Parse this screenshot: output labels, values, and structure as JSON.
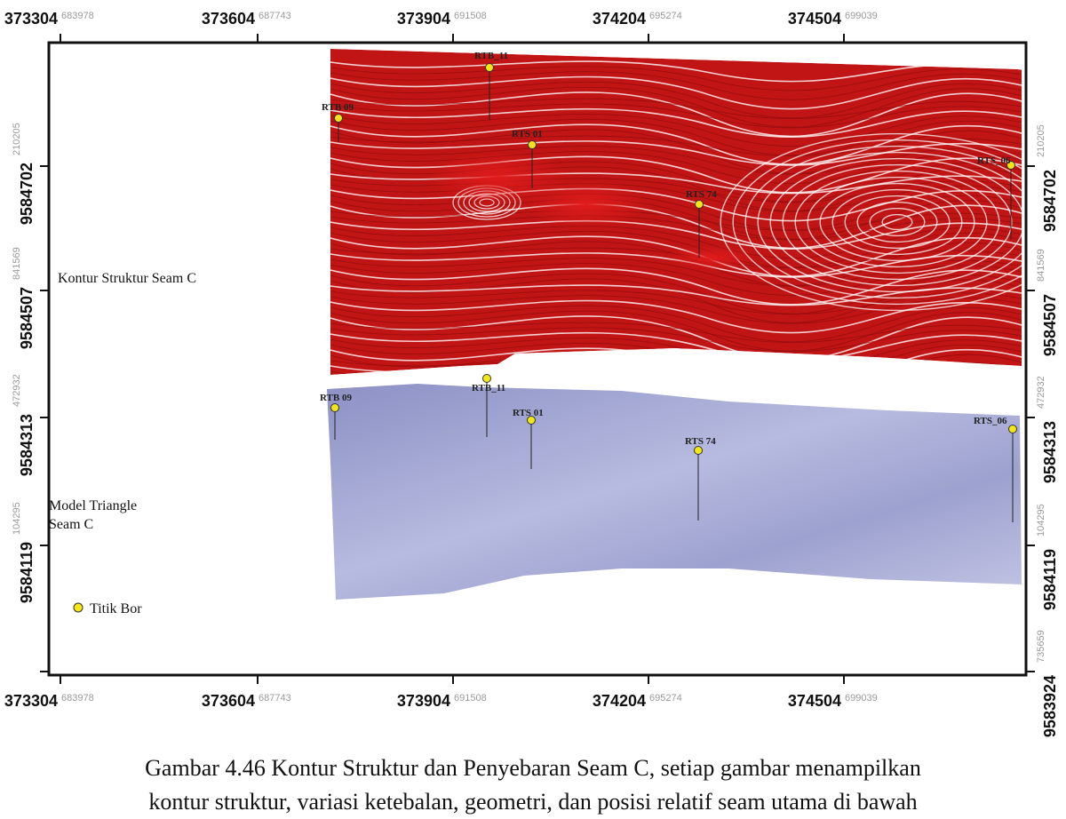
{
  "x_ticks": [
    {
      "value": "373304",
      "sub": "683978"
    },
    {
      "value": "373604",
      "sub": "687743"
    },
    {
      "value": "373904",
      "sub": "691508"
    },
    {
      "value": "374204",
      "sub": "695274"
    },
    {
      "value": "374504",
      "sub": "699039"
    }
  ],
  "y_ticks_left": [
    {
      "value": "9584702",
      "sub": "210205"
    },
    {
      "value": "9584507",
      "sub": "841569"
    },
    {
      "value": "9584313",
      "sub": "472932"
    },
    {
      "value": "9584119",
      "sub": "104295"
    }
  ],
  "y_ticks_right": [
    {
      "value": "9584702",
      "sub": "210205"
    },
    {
      "value": "9584507",
      "sub": "841569"
    },
    {
      "value": "9584313",
      "sub": "472932"
    },
    {
      "value": "9584119",
      "sub": "104295"
    },
    {
      "value": "9583924",
      "sub": "735659"
    }
  ],
  "legend": {
    "contour_label": "Kontur Struktur Seam C",
    "triangle_label_line1": "Model Triangle",
    "triangle_label_line2": "Seam C",
    "borehole_label": "Titik Bor"
  },
  "wells_top": [
    {
      "name": "RTB_11"
    },
    {
      "name": "RTB 09"
    },
    {
      "name": "RTS 01"
    },
    {
      "name": "RTS 74"
    },
    {
      "name": "RTS_06"
    }
  ],
  "wells_bottom": [
    {
      "name": "RTB_11"
    },
    {
      "name": "RTB 09"
    },
    {
      "name": "RTS 01"
    },
    {
      "name": "RTS 74"
    },
    {
      "name": "RTS_06"
    }
  ],
  "colors": {
    "contour_red": "#d51a1a",
    "contour_dark": "#9e0f0f",
    "triangle_fill": "#a9aed6",
    "well_marker": "#f5e616"
  },
  "caption": {
    "line1": "Gambar 4.46 Kontur Struktur dan Penyebaran Seam C, setiap gambar menampilkan",
    "line2": "kontur struktur, variasi ketebalan, geometri, dan posisi relatif seam utama di bawah"
  }
}
